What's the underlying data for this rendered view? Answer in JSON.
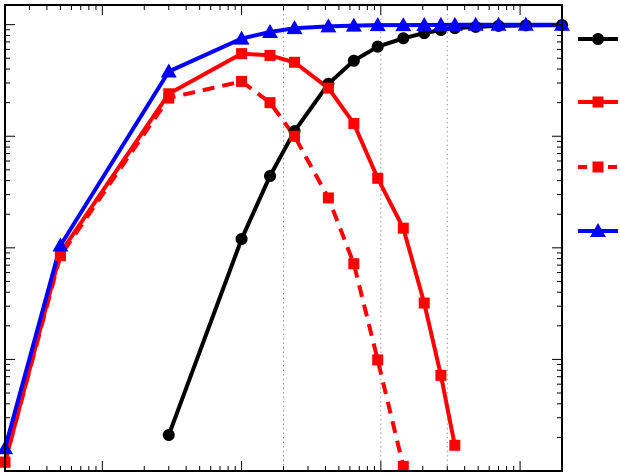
{
  "chart_data": {
    "type": "line",
    "x_scale": "log",
    "y_scale": "log",
    "xlim": [
      0.02,
      200
    ],
    "ylim": [
      0.0001,
      1.5
    ],
    "grid": "vertical-dotted",
    "colors": {
      "black": "#000000",
      "red": "#ff0000",
      "blue": "#0000ff"
    },
    "legend_position": "right",
    "series": [
      {
        "color": "#000000",
        "dash": "solid",
        "marker": "circle",
        "x": [
          0.3,
          1.0,
          1.6,
          2.4,
          4.2,
          6.4,
          9.5,
          14.5,
          20.5,
          27,
          34,
          48,
          70,
          110,
          200
        ],
        "y": [
          0.00021,
          0.012,
          0.044,
          0.111,
          0.295,
          0.475,
          0.635,
          0.755,
          0.84,
          0.895,
          0.93,
          0.955,
          0.975,
          0.985,
          0.99
        ]
      },
      {
        "color": "#ff0000",
        "dash": "solid",
        "marker": "square",
        "x": [
          0.02,
          0.05,
          0.3,
          1.0,
          1.6,
          2.4,
          4.2,
          6.4,
          9.5,
          14.5,
          20.5,
          27,
          34
        ],
        "y": [
          0.00012,
          0.009,
          0.24,
          0.55,
          0.53,
          0.46,
          0.27,
          0.13,
          0.042,
          0.015,
          0.0032,
          0.00072,
          0.00017
        ]
      },
      {
        "color": "#ff0000",
        "dash": "dashed",
        "marker": "square",
        "x": [
          0.02,
          0.05,
          0.3,
          1.0,
          1.6,
          2.4,
          4.2,
          6.4,
          9.5,
          14.5
        ],
        "y": [
          0.00012,
          0.0085,
          0.22,
          0.31,
          0.2,
          0.1,
          0.028,
          0.0072,
          0.00099,
          0.00011
        ]
      },
      {
        "color": "#0000ff",
        "dash": "solid",
        "marker": "triangle",
        "x": [
          0.02,
          0.05,
          0.3,
          1.0,
          1.6,
          2.4,
          4.2,
          6.4,
          9.5,
          14.5,
          20.5,
          27,
          34,
          48,
          70,
          110,
          200
        ],
        "y": [
          0.00016,
          0.0105,
          0.38,
          0.75,
          0.86,
          0.93,
          0.965,
          0.98,
          0.99,
          0.99,
          0.993,
          0.995,
          0.996,
          0.997,
          0.997,
          0.998,
          0.998
        ]
      }
    ]
  }
}
